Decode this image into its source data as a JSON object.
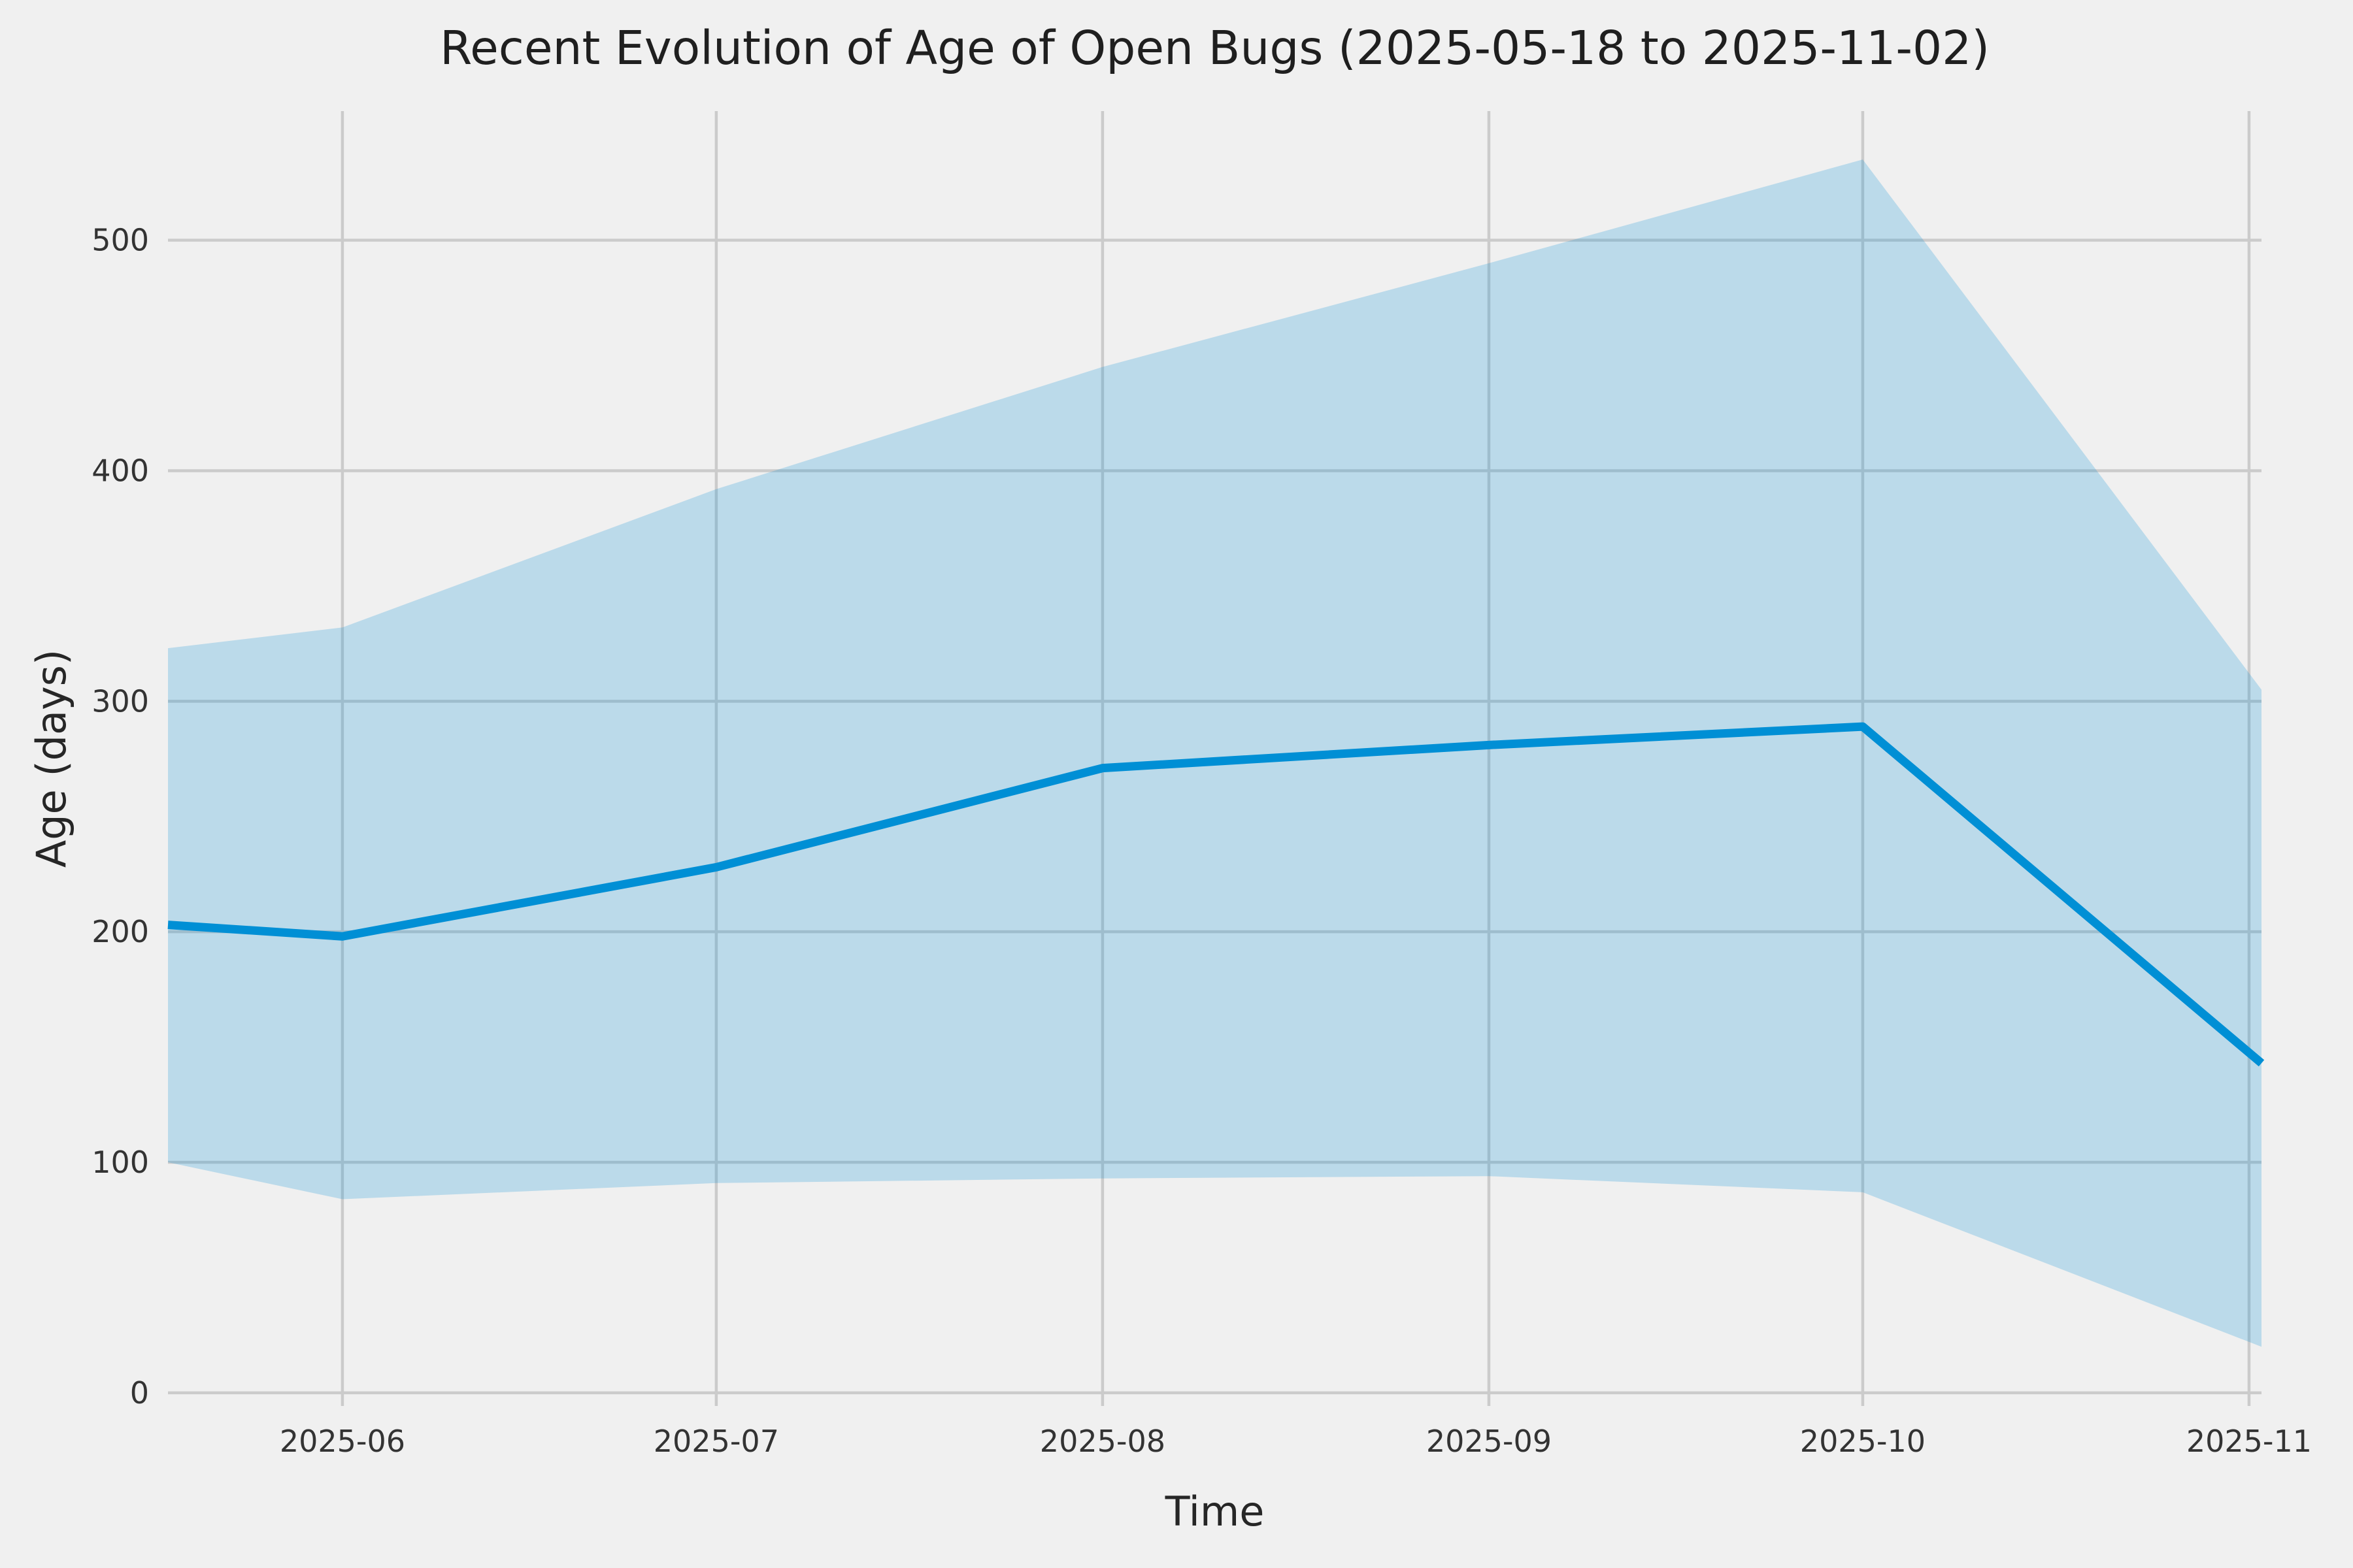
{
  "chart_data": {
    "type": "line",
    "title": "Recent Evolution of Age of Open Bugs (2025-05-18 to 2025-11-02)",
    "xlabel": "Time",
    "ylabel": "Age (days)",
    "date_range": {
      "start": "2025-05-18",
      "end": "2025-11-02"
    },
    "x_dates": [
      "2025-05-18",
      "2025-06-01",
      "2025-07-01",
      "2025-08-01",
      "2025-09-01",
      "2025-10-01",
      "2025-11-02"
    ],
    "x_day_offsets": [
      0,
      14,
      44,
      75,
      106,
      136,
      168
    ],
    "series": [
      {
        "name": "mean-age-line",
        "values": [
          203,
          198,
          228,
          271,
          281,
          289,
          143
        ]
      },
      {
        "name": "band-upper",
        "values": [
          323,
          332,
          392,
          445,
          490,
          535,
          305
        ]
      },
      {
        "name": "band-lower",
        "values": [
          100,
          84,
          91,
          93,
          94,
          87,
          20
        ]
      }
    ],
    "x_ticks": [
      {
        "label": "2025-06",
        "day": 14
      },
      {
        "label": "2025-07",
        "day": 44
      },
      {
        "label": "2025-08",
        "day": 75
      },
      {
        "label": "2025-09",
        "day": 106
      },
      {
        "label": "2025-10",
        "day": 136
      },
      {
        "label": "2025-11",
        "day": 167
      }
    ],
    "y_ticks": [
      0,
      100,
      200,
      300,
      400,
      500
    ],
    "xlim_days": [
      0,
      168
    ],
    "ylim": [
      -5.7,
      556
    ],
    "grid": true,
    "legend": "none",
    "colors": {
      "background": "#f0f0f0",
      "gridline": "#cbcbcb",
      "line": "#008fd5",
      "band_fill": "#008fd5",
      "band_opacity": 0.22,
      "title_text": "#1f1f1f",
      "tick_text": "#333333"
    }
  }
}
